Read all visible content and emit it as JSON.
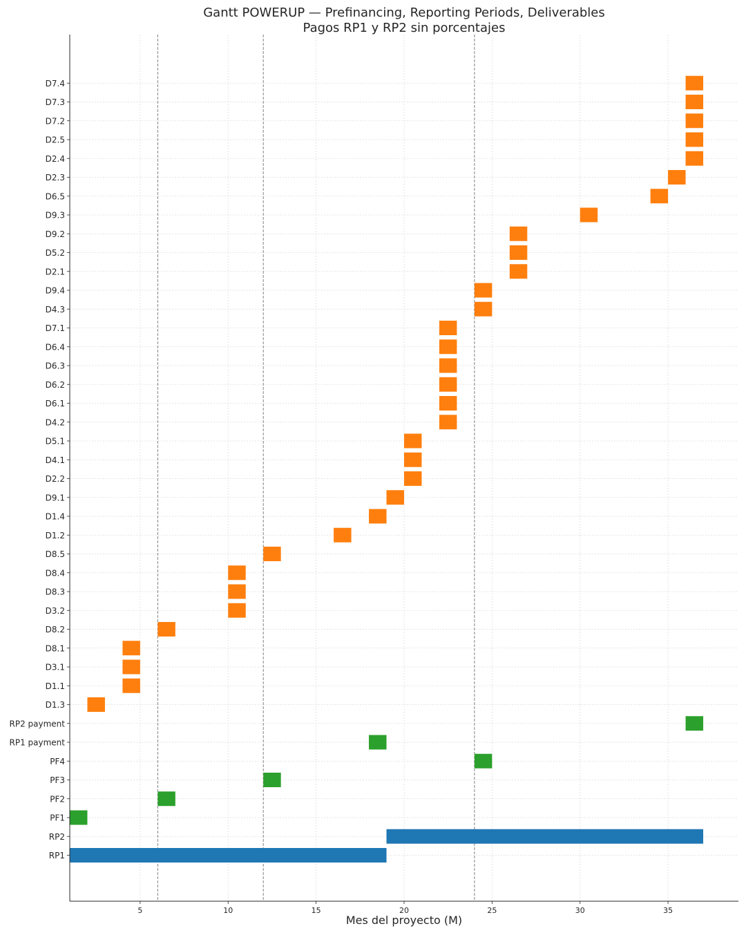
{
  "chart_data": {
    "type": "bar",
    "orientation": "horizontal-gantt",
    "title": "Gantt POWERUP — Prefinancing, Reporting Periods, Deliverables",
    "subtitle": "Pagos RP1 y RP2 sin porcentajes",
    "xlabel": "Mes del proyecto (M)",
    "ylabel": "",
    "xlim": [
      1,
      39
    ],
    "x_ticks": [
      5,
      10,
      15,
      20,
      25,
      30,
      35
    ],
    "grid": true,
    "vertical_reference_lines": [
      6,
      12,
      24
    ],
    "colors": {
      "reporting_period": "#1f77b4",
      "payment": "#2ca02c",
      "deliverable": "#ff7f0e",
      "reference_line": "#808080",
      "grid": "#dddddd"
    },
    "tasks": [
      {
        "label": "RP1",
        "start": 1,
        "end": 19,
        "kind": "reporting_period"
      },
      {
        "label": "RP2",
        "start": 19,
        "end": 37,
        "kind": "reporting_period"
      },
      {
        "label": "PF1",
        "start": 1,
        "end": 2,
        "kind": "payment"
      },
      {
        "label": "PF2",
        "start": 6,
        "end": 7,
        "kind": "payment"
      },
      {
        "label": "PF3",
        "start": 12,
        "end": 13,
        "kind": "payment"
      },
      {
        "label": "PF4",
        "start": 24,
        "end": 25,
        "kind": "payment"
      },
      {
        "label": "RP1 payment",
        "start": 18,
        "end": 19,
        "kind": "payment"
      },
      {
        "label": "RP2 payment",
        "start": 36,
        "end": 37,
        "kind": "payment"
      },
      {
        "label": "D1.3",
        "start": 2,
        "end": 3,
        "kind": "deliverable"
      },
      {
        "label": "D1.1",
        "start": 4,
        "end": 5,
        "kind": "deliverable"
      },
      {
        "label": "D3.1",
        "start": 4,
        "end": 5,
        "kind": "deliverable"
      },
      {
        "label": "D8.1",
        "start": 4,
        "end": 5,
        "kind": "deliverable"
      },
      {
        "label": "D8.2",
        "start": 6,
        "end": 7,
        "kind": "deliverable"
      },
      {
        "label": "D3.2",
        "start": 10,
        "end": 11,
        "kind": "deliverable"
      },
      {
        "label": "D8.3",
        "start": 10,
        "end": 11,
        "kind": "deliverable"
      },
      {
        "label": "D8.4",
        "start": 10,
        "end": 11,
        "kind": "deliverable"
      },
      {
        "label": "D8.5",
        "start": 12,
        "end": 13,
        "kind": "deliverable"
      },
      {
        "label": "D1.2",
        "start": 16,
        "end": 17,
        "kind": "deliverable"
      },
      {
        "label": "D1.4",
        "start": 18,
        "end": 19,
        "kind": "deliverable"
      },
      {
        "label": "D9.1",
        "start": 19,
        "end": 20,
        "kind": "deliverable"
      },
      {
        "label": "D2.2",
        "start": 20,
        "end": 21,
        "kind": "deliverable"
      },
      {
        "label": "D4.1",
        "start": 20,
        "end": 21,
        "kind": "deliverable"
      },
      {
        "label": "D5.1",
        "start": 20,
        "end": 21,
        "kind": "deliverable"
      },
      {
        "label": "D4.2",
        "start": 22,
        "end": 23,
        "kind": "deliverable"
      },
      {
        "label": "D6.1",
        "start": 22,
        "end": 23,
        "kind": "deliverable"
      },
      {
        "label": "D6.2",
        "start": 22,
        "end": 23,
        "kind": "deliverable"
      },
      {
        "label": "D6.3",
        "start": 22,
        "end": 23,
        "kind": "deliverable"
      },
      {
        "label": "D6.4",
        "start": 22,
        "end": 23,
        "kind": "deliverable"
      },
      {
        "label": "D7.1",
        "start": 22,
        "end": 23,
        "kind": "deliverable"
      },
      {
        "label": "D4.3",
        "start": 24,
        "end": 25,
        "kind": "deliverable"
      },
      {
        "label": "D9.4",
        "start": 24,
        "end": 25,
        "kind": "deliverable"
      },
      {
        "label": "D2.1",
        "start": 26,
        "end": 27,
        "kind": "deliverable"
      },
      {
        "label": "D5.2",
        "start": 26,
        "end": 27,
        "kind": "deliverable"
      },
      {
        "label": "D9.2",
        "start": 26,
        "end": 27,
        "kind": "deliverable"
      },
      {
        "label": "D9.3",
        "start": 30,
        "end": 31,
        "kind": "deliverable"
      },
      {
        "label": "D6.5",
        "start": 34,
        "end": 35,
        "kind": "deliverable"
      },
      {
        "label": "D2.3",
        "start": 35,
        "end": 36,
        "kind": "deliverable"
      },
      {
        "label": "D2.4",
        "start": 36,
        "end": 37,
        "kind": "deliverable"
      },
      {
        "label": "D2.5",
        "start": 36,
        "end": 37,
        "kind": "deliverable"
      },
      {
        "label": "D7.2",
        "start": 36,
        "end": 37,
        "kind": "deliverable"
      },
      {
        "label": "D7.3",
        "start": 36,
        "end": 37,
        "kind": "deliverable"
      },
      {
        "label": "D7.4",
        "start": 36,
        "end": 37,
        "kind": "deliverable"
      }
    ]
  }
}
